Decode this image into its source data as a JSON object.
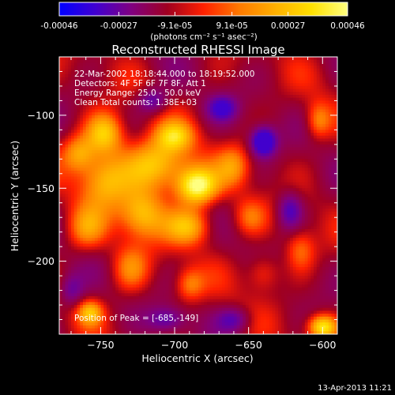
{
  "colorbar": {
    "tick_labels": [
      "-0.00046",
      "-0.00027",
      "-9.1e-05",
      "9.1e-05",
      "0.00027",
      "0.00046"
    ],
    "tick_values": [
      -0.00046,
      -0.00027,
      -9.1e-05,
      9.1e-05,
      0.00027,
      0.00046
    ],
    "range": [
      -0.00046,
      0.00046
    ],
    "units_text": "(photons cm⁻² s⁻¹ asec⁻²)",
    "palette": [
      "#0000ff",
      "#4000d0",
      "#800080",
      "#a00020",
      "#ff2000",
      "#ff7a00",
      "#ffb000",
      "#ffe000",
      "#ffff80"
    ]
  },
  "annotations": {
    "time_range": "22-Mar-2002 18:18:44.000 to 18:19:52.000",
    "detectors": "Detectors: 4F 5F 6F 7F 8F, Att 1",
    "energy_range": "Energy Range: 25.0 - 50.0 keV",
    "clean_counts": "Clean     Total counts: 1.38E+03",
    "peak_position": "Position of Peak = [-685,-149]"
  },
  "footer": {
    "timestamp": "13-Apr-2013 11:21"
  },
  "chart_data": {
    "type": "heatmap",
    "title": "Reconstructed RHESSI Image",
    "xlabel": "Heliocentric X (arcsec)",
    "ylabel": "Heliocentric Y (arcsec)",
    "xlim": [
      -778,
      -590
    ],
    "ylim": [
      -250,
      -60
    ],
    "x_ticks": [
      {
        "value": -750,
        "label": "−750"
      },
      {
        "value": -700,
        "label": "−700"
      },
      {
        "value": -650,
        "label": "−650"
      },
      {
        "value": -600,
        "label": "−600"
      }
    ],
    "y_ticks": [
      {
        "value": -100,
        "label": "−100"
      },
      {
        "value": -150,
        "label": "−150"
      },
      {
        "value": -200,
        "label": "−200"
      }
    ],
    "peak": {
      "x": -685,
      "y": -149
    },
    "sources": [
      {
        "x": -685,
        "y": -149,
        "sx": 10,
        "sy": 9,
        "level": 1.0
      },
      {
        "x": -712,
        "y": -134,
        "sx": 16,
        "sy": 13,
        "level": 0.78
      },
      {
        "x": -747,
        "y": -112,
        "sx": 9,
        "sy": 10,
        "level": 0.72
      },
      {
        "x": -748,
        "y": -144,
        "sx": 12,
        "sy": 14,
        "level": 0.6
      },
      {
        "x": -765,
        "y": -126,
        "sx": 8,
        "sy": 9,
        "level": 0.5
      },
      {
        "x": -722,
        "y": -168,
        "sx": 11,
        "sy": 12,
        "level": 0.65
      },
      {
        "x": -690,
        "y": -176,
        "sx": 11,
        "sy": 9,
        "level": 0.62
      },
      {
        "x": -700,
        "y": -114,
        "sx": 9,
        "sy": 7,
        "level": 0.52
      },
      {
        "x": -760,
        "y": -178,
        "sx": 10,
        "sy": 11,
        "level": 0.45
      },
      {
        "x": -730,
        "y": -205,
        "sx": 9,
        "sy": 11,
        "level": 0.42
      },
      {
        "x": -690,
        "y": -216,
        "sx": 7,
        "sy": 8,
        "level": 0.42
      },
      {
        "x": -660,
        "y": -135,
        "sx": 8,
        "sy": 10,
        "level": 0.4
      },
      {
        "x": -650,
        "y": -170,
        "sx": 8,
        "sy": 9,
        "level": 0.35
      },
      {
        "x": -640,
        "y": -208,
        "sx": 8,
        "sy": 9,
        "level": 0.36
      },
      {
        "x": -615,
        "y": -192,
        "sx": 7,
        "sy": 10,
        "level": 0.38
      },
      {
        "x": -603,
        "y": -104,
        "sx": 6,
        "sy": 9,
        "level": 0.45
      },
      {
        "x": -600,
        "y": -245,
        "sx": 7,
        "sy": 6,
        "level": 0.85
      },
      {
        "x": -757,
        "y": -235,
        "sx": 6,
        "sy": 6,
        "level": 0.55
      },
      {
        "x": -640,
        "y": -118,
        "sx": 6,
        "sy": 7,
        "level": -0.9
      },
      {
        "x": -668,
        "y": -95,
        "sx": 7,
        "sy": 6,
        "level": -0.55
      },
      {
        "x": -715,
        "y": -90,
        "sx": 7,
        "sy": 6,
        "level": -0.5
      },
      {
        "x": -622,
        "y": -165,
        "sx": 6,
        "sy": 9,
        "level": -0.55
      },
      {
        "x": -705,
        "y": -240,
        "sx": 9,
        "sy": 6,
        "level": -0.45
      },
      {
        "x": -660,
        "y": -240,
        "sx": 8,
        "sy": 6,
        "level": -0.45
      },
      {
        "x": -770,
        "y": -220,
        "sx": 6,
        "sy": 8,
        "level": -0.4
      }
    ],
    "pixel_size_arcsec": 2,
    "grid": false
  }
}
